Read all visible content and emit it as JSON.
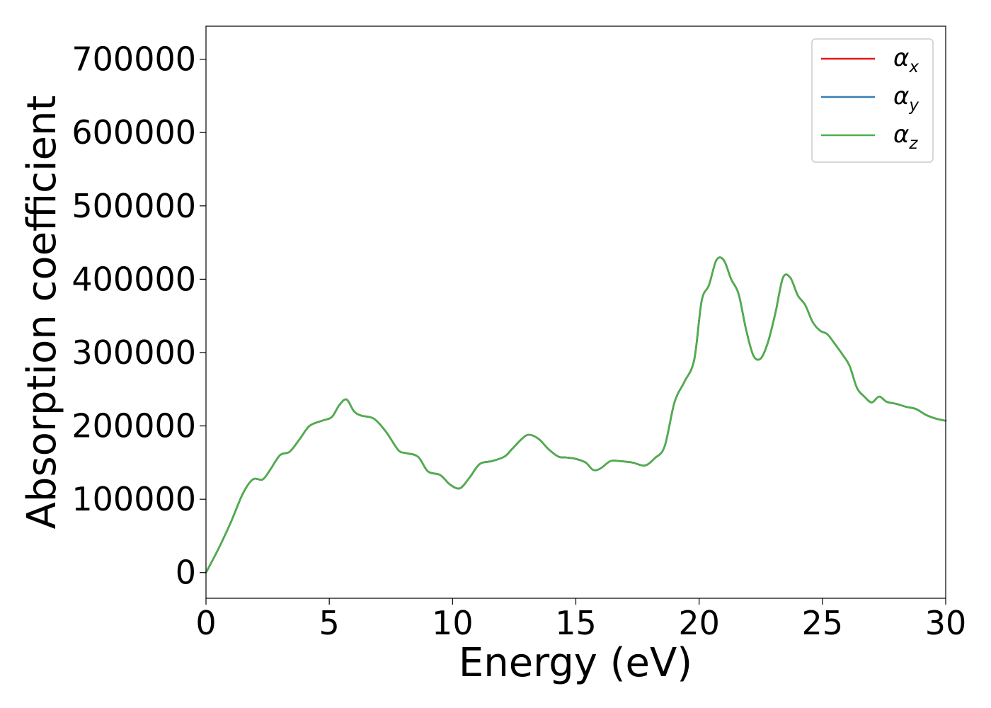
{
  "chart_data": {
    "type": "line",
    "title": "",
    "xlabel": "Energy (eV)",
    "ylabel": "Absorption coefficient",
    "xlim": [
      0,
      30
    ],
    "ylim": [
      -35000,
      745000
    ],
    "xticks": [
      0,
      5,
      10,
      15,
      20,
      25,
      30
    ],
    "xtick_labels": [
      "0",
      "5",
      "10",
      "15",
      "20",
      "25",
      "30"
    ],
    "yticks": [
      0,
      100000,
      200000,
      300000,
      400000,
      500000,
      600000,
      700000
    ],
    "ytick_labels": [
      "0",
      "100000",
      "200000",
      "300000",
      "400000",
      "500000",
      "600000",
      "700000"
    ],
    "grid": false,
    "legend_position": "top-right",
    "x": [
      0,
      0.5,
      1,
      1.5,
      1.9,
      2.3,
      2.6,
      3,
      3.4,
      3.8,
      4.2,
      4.7,
      5.1,
      5.4,
      5.7,
      6,
      6.3,
      6.8,
      7.3,
      7.8,
      8.1,
      8.6,
      9,
      9.5,
      9.9,
      10.3,
      10.7,
      11.1,
      11.6,
      12.1,
      12.4,
      12.8,
      13.1,
      13.5,
      13.9,
      14.3,
      14.6,
      15,
      15.4,
      15.7,
      16,
      16.4,
      16.8,
      17.3,
      17.8,
      18.2,
      18.6,
      19,
      19.4,
      19.8,
      20.1,
      20.4,
      20.7,
      21,
      21.3,
      21.6,
      21.9,
      22.2,
      22.5,
      22.8,
      23.1,
      23.4,
      23.7,
      24,
      24.3,
      24.6,
      24.9,
      25.2,
      25.5,
      25.8,
      26.1,
      26.4,
      26.7,
      27,
      27.3,
      27.6,
      28,
      28.4,
      28.8,
      29.2,
      29.6,
      30
    ],
    "series": [
      {
        "name": "αx",
        "label_base": "α",
        "label_sub": "x",
        "color": "#e41a1c",
        "values": [
          0,
          32000,
          68000,
          108000,
          127000,
          127000,
          140000,
          160000,
          165000,
          182000,
          200000,
          207000,
          212000,
          228000,
          236000,
          220000,
          214000,
          210000,
          192000,
          167000,
          163000,
          158000,
          138000,
          133000,
          120000,
          115000,
          130000,
          148000,
          152000,
          158000,
          168000,
          182000,
          188000,
          182000,
          168000,
          158000,
          157000,
          155000,
          150000,
          140000,
          142000,
          152000,
          152000,
          150000,
          146000,
          156000,
          172000,
          232000,
          260000,
          290000,
          370000,
          392000,
          426000,
          426000,
          400000,
          380000,
          332000,
          296000,
          292000,
          315000,
          355000,
          402000,
          402000,
          378000,
          365000,
          342000,
          330000,
          325000,
          312000,
          298000,
          282000,
          252000,
          240000,
          232000,
          240000,
          233000,
          230000,
          226000,
          223000,
          215000,
          210000,
          207000
        ]
      },
      {
        "name": "αy",
        "label_base": "α",
        "label_sub": "y",
        "color": "#377eb8",
        "values": [
          0,
          32000,
          68000,
          108000,
          127000,
          127000,
          140000,
          160000,
          165000,
          182000,
          200000,
          207000,
          212000,
          228000,
          236000,
          220000,
          214000,
          210000,
          192000,
          167000,
          163000,
          158000,
          138000,
          133000,
          120000,
          115000,
          130000,
          148000,
          152000,
          158000,
          168000,
          182000,
          188000,
          182000,
          168000,
          158000,
          157000,
          155000,
          150000,
          140000,
          142000,
          152000,
          152000,
          150000,
          146000,
          156000,
          172000,
          232000,
          260000,
          290000,
          370000,
          392000,
          426000,
          426000,
          400000,
          380000,
          332000,
          296000,
          292000,
          315000,
          355000,
          402000,
          402000,
          378000,
          365000,
          342000,
          330000,
          325000,
          312000,
          298000,
          282000,
          252000,
          240000,
          232000,
          240000,
          233000,
          230000,
          226000,
          223000,
          215000,
          210000,
          207000
        ]
      },
      {
        "name": "αz",
        "label_base": "α",
        "label_sub": "z",
        "color": "#4daf4a",
        "values": [
          0,
          32000,
          68000,
          108000,
          127000,
          127000,
          140000,
          160000,
          165000,
          182000,
          200000,
          207000,
          212000,
          228000,
          236000,
          220000,
          214000,
          210000,
          192000,
          167000,
          163000,
          158000,
          138000,
          133000,
          120000,
          115000,
          130000,
          148000,
          152000,
          158000,
          168000,
          182000,
          188000,
          182000,
          168000,
          158000,
          157000,
          155000,
          150000,
          140000,
          142000,
          152000,
          152000,
          150000,
          146000,
          156000,
          172000,
          232000,
          260000,
          290000,
          370000,
          392000,
          426000,
          426000,
          400000,
          380000,
          332000,
          296000,
          292000,
          315000,
          355000,
          402000,
          402000,
          378000,
          365000,
          342000,
          330000,
          325000,
          312000,
          298000,
          282000,
          252000,
          240000,
          232000,
          240000,
          233000,
          230000,
          226000,
          223000,
          215000,
          210000,
          207000
        ]
      }
    ]
  }
}
